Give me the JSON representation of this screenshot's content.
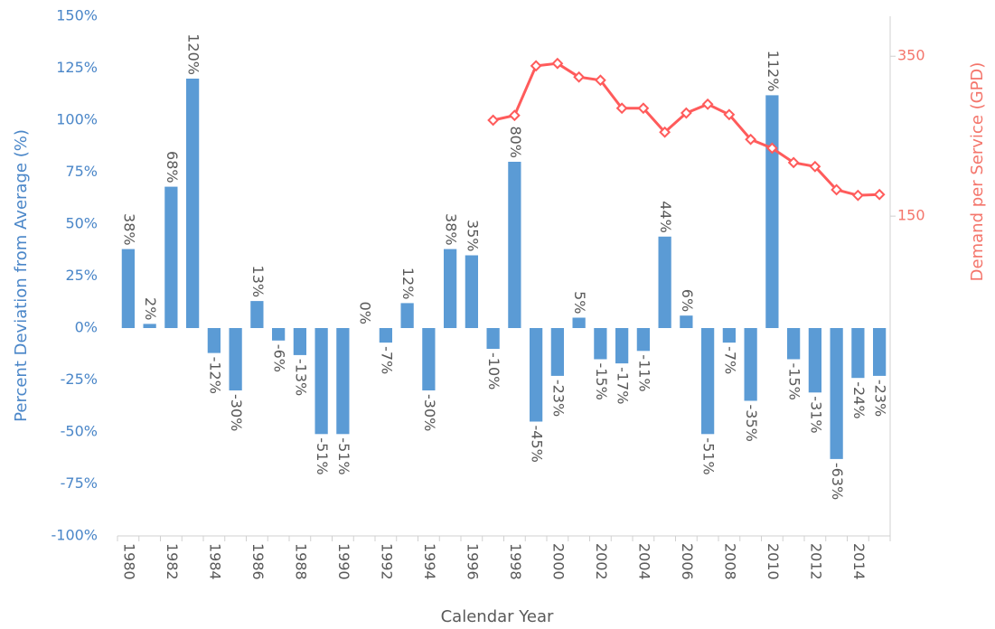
{
  "chart_data": {
    "type": "bar",
    "xlabel": "Calendar Year",
    "ylabel": "Percent Deviation from Average (%)",
    "y2label": "Demand per Service (GPD)",
    "categories": [
      "1980",
      null,
      "1982",
      null,
      "1984",
      null,
      "1986",
      null,
      "1988",
      null,
      "1990",
      null,
      "1992",
      null,
      "1994",
      null,
      "1996",
      null,
      "1998",
      null,
      "2000",
      null,
      "2002",
      null,
      "2004",
      null,
      "2006",
      null,
      "2008",
      null,
      "2010",
      null,
      "2012",
      null,
      "2014",
      null
    ],
    "series": [
      {
        "type": "bar",
        "color": "#5b9bd5",
        "values": [
          38,
          2,
          68,
          120,
          -12,
          -30,
          13,
          -6,
          -13,
          -51,
          -51,
          0,
          -7,
          12,
          -30,
          38,
          35,
          -10,
          80,
          -45,
          -23,
          5,
          -15,
          -17,
          -11,
          44,
          6,
          -51,
          -7,
          -35,
          112,
          -15,
          -31,
          -63,
          -24,
          -23
        ],
        "value_labels": [
          "38%",
          "2%",
          "68%",
          "120%",
          "-12%",
          "-30%",
          "13%",
          "-6%",
          "-13%",
          "-51%",
          "-51%",
          "0%",
          "-7%",
          "12%",
          "-30%",
          "38%",
          "35%",
          "-10%",
          "80%",
          "-45%",
          "-23%",
          "5%",
          "-15%",
          "-17%",
          "-11%",
          "44%",
          "6%",
          "-51%",
          "-7%",
          "-35%",
          "112%",
          "-15%",
          "-31%",
          "-63%",
          "-24%",
          "-23%"
        ]
      },
      {
        "type": "line",
        "axis": "y2",
        "color": "#ff5b5b",
        "values": [
          null,
          null,
          null,
          null,
          null,
          null,
          null,
          null,
          null,
          null,
          null,
          null,
          null,
          null,
          null,
          null,
          null,
          270,
          276,
          338,
          341,
          324,
          320,
          285,
          285,
          255,
          279,
          290,
          277,
          246,
          235,
          217,
          212,
          183,
          176,
          177
        ]
      }
    ],
    "ylim": [
      -100,
      150
    ],
    "yticks": [
      {
        "value": -100,
        "label": "-100%"
      },
      {
        "value": -75,
        "label": "-75%"
      },
      {
        "value": -50,
        "label": "-50%"
      },
      {
        "value": -25,
        "label": "-25%"
      },
      {
        "value": 0,
        "label": "0%"
      },
      {
        "value": 25,
        "label": "25%"
      },
      {
        "value": 50,
        "label": "50%"
      },
      {
        "value": 75,
        "label": "75%"
      },
      {
        "value": 100,
        "label": "100%"
      },
      {
        "value": 125,
        "label": "125%"
      },
      {
        "value": 150,
        "label": "150%"
      }
    ],
    "y2lim": [
      -250,
      400
    ],
    "y2ticks": [
      150,
      350
    ],
    "grid": false
  }
}
